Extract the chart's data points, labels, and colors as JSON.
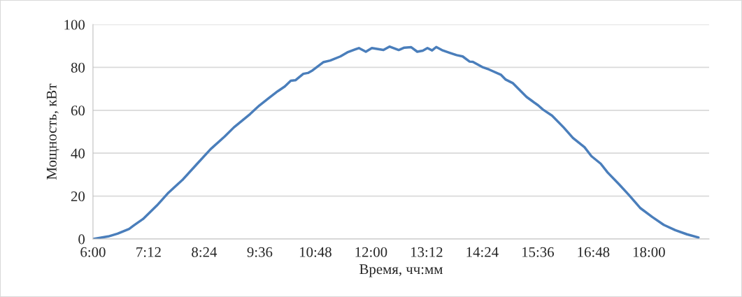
{
  "chart_data": {
    "type": "line",
    "xlabel": "Время, чч:мм",
    "ylabel": "Мощность, кВт",
    "xlim": [
      6,
      19.3
    ],
    "ylim": [
      0,
      100
    ],
    "xticks": [
      {
        "value": 6,
        "label": "6:00"
      },
      {
        "value": 7.2,
        "label": "7:12"
      },
      {
        "value": 8.4,
        "label": "8:24"
      },
      {
        "value": 9.6,
        "label": "9:36"
      },
      {
        "value": 10.8,
        "label": "10:48"
      },
      {
        "value": 12,
        "label": "12:00"
      },
      {
        "value": 13.2,
        "label": "13:12"
      },
      {
        "value": 14.4,
        "label": "14:24"
      },
      {
        "value": 15.6,
        "label": "15:36"
      },
      {
        "value": 16.8,
        "label": "16:48"
      },
      {
        "value": 18,
        "label": "18:00"
      }
    ],
    "yticks": [
      0,
      20,
      40,
      60,
      80,
      100
    ],
    "grid": "y",
    "legend": false,
    "marker": "none",
    "line_style": "solid",
    "series": [
      {
        "color": "#4a7ebb",
        "x": [
          6.0,
          6.33,
          6.53,
          6.78,
          6.88,
          7.08,
          7.38,
          7.63,
          7.93,
          8.23,
          8.54,
          8.84,
          9.04,
          9.39,
          9.59,
          9.79,
          9.99,
          10.14,
          10.27,
          10.37,
          10.54,
          10.64,
          10.74,
          10.97,
          11.12,
          11.34,
          11.49,
          11.74,
          11.89,
          12.02,
          12.27,
          12.4,
          12.6,
          12.72,
          12.87,
          13.0,
          13.12,
          13.22,
          13.32,
          13.41,
          13.55,
          13.7,
          13.85,
          13.98,
          14.13,
          14.2,
          14.4,
          14.55,
          14.81,
          14.91,
          15.06,
          15.36,
          15.61,
          15.71,
          15.91,
          16.16,
          16.36,
          16.61,
          16.76,
          16.96,
          17.11,
          17.36,
          17.57,
          17.81,
          18.07,
          18.32,
          18.57,
          18.82,
          19.07
        ],
        "values": [
          0,
          1.2,
          2.5,
          4.7,
          6.3,
          9.3,
          15.6,
          21.6,
          27.5,
          34.6,
          41.9,
          47.7,
          52,
          58.2,
          62.2,
          65.6,
          68.9,
          71.1,
          73.8,
          74,
          77,
          77.4,
          78.6,
          82.4,
          83.2,
          85.1,
          87,
          89,
          87.3,
          89,
          88.1,
          89.7,
          88.1,
          89.2,
          89.4,
          87.3,
          87.8,
          89,
          87.9,
          89.5,
          87.9,
          86.8,
          85.7,
          85.1,
          82.7,
          82.6,
          80.2,
          79,
          76.5,
          74.3,
          72.7,
          66.2,
          62.3,
          60.4,
          57.5,
          52,
          47.1,
          42.8,
          38.6,
          35.1,
          31,
          25.4,
          20.5,
          14.5,
          10.3,
          6.6,
          4.1,
          2.2,
          0.7
        ]
      }
    ]
  }
}
